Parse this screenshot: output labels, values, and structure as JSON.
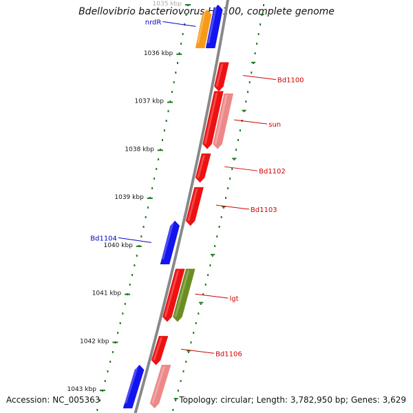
{
  "title": "Bdellovibrio bacteriovorus HD100, complete genome",
  "accession": "Accession: NC_005363",
  "topology": "Topology: circular; Length: 3,782,950 bp; Genes: 3,629",
  "scale": {
    "start_label": "1035 kbp",
    "labels": [
      "1036 kbp",
      "1037 kbp",
      "1038 kbp",
      "1039 kbp",
      "1040 kbp",
      "1041 kbp",
      "1042 kbp",
      "1043 kbp"
    ]
  },
  "colors": {
    "backbone": "#888888",
    "scale": "#1f7a1f",
    "forward_gene": "#ee1111",
    "forward_gene_light": "#ee8888",
    "forward_olive": "#6b8e23",
    "reverse_gene": "#1414ee",
    "reverse_orange": "#f79a1a",
    "label_forward": "#cc0000",
    "label_reverse": "#0000cc"
  },
  "genes": [
    {
      "name": "nrdR",
      "strand": "reverse",
      "start_kbp": 1035.1,
      "end_kbp": 1036.0,
      "track": 0,
      "color": "reverse_gene"
    },
    {
      "name": "",
      "strand": "reverse",
      "start_kbp": 1035.2,
      "end_kbp": 1036.0,
      "track": 1,
      "color": "reverse_orange"
    },
    {
      "name": "Bd1100",
      "strand": "forward",
      "start_kbp": 1036.3,
      "end_kbp": 1036.9,
      "track": 0,
      "color": "forward_gene"
    },
    {
      "name": "",
      "strand": "forward",
      "start_kbp": 1036.9,
      "end_kbp": 1038.1,
      "track": 0,
      "color": "forward_gene"
    },
    {
      "name": "sun",
      "strand": "forward",
      "start_kbp": 1036.95,
      "end_kbp": 1038.1,
      "track": 1,
      "color": "forward_gene_light"
    },
    {
      "name": "Bd1102",
      "strand": "forward",
      "start_kbp": 1038.2,
      "end_kbp": 1038.8,
      "track": 0,
      "color": "forward_gene"
    },
    {
      "name": "Bd1103",
      "strand": "forward",
      "start_kbp": 1038.9,
      "end_kbp": 1039.7,
      "track": 0,
      "color": "forward_gene"
    },
    {
      "name": "Bd1104",
      "strand": "reverse",
      "start_kbp": 1039.6,
      "end_kbp": 1040.5,
      "track": 0,
      "color": "reverse_gene"
    },
    {
      "name": "",
      "strand": "forward",
      "start_kbp": 1040.6,
      "end_kbp": 1041.7,
      "track": 0,
      "color": "forward_gene"
    },
    {
      "name": "lgt",
      "strand": "forward",
      "start_kbp": 1040.6,
      "end_kbp": 1041.7,
      "track": 1,
      "color": "forward_olive"
    },
    {
      "name": "Bd1106",
      "strand": "forward",
      "start_kbp": 1042.0,
      "end_kbp": 1042.6,
      "track": 0,
      "color": "forward_gene"
    },
    {
      "name": "",
      "strand": "forward",
      "start_kbp": 1042.6,
      "end_kbp": 1043.5,
      "track": 1,
      "color": "forward_gene_light"
    },
    {
      "name": "",
      "strand": "reverse",
      "start_kbp": 1042.6,
      "end_kbp": 1043.5,
      "track": 0,
      "color": "reverse_gene"
    }
  ]
}
